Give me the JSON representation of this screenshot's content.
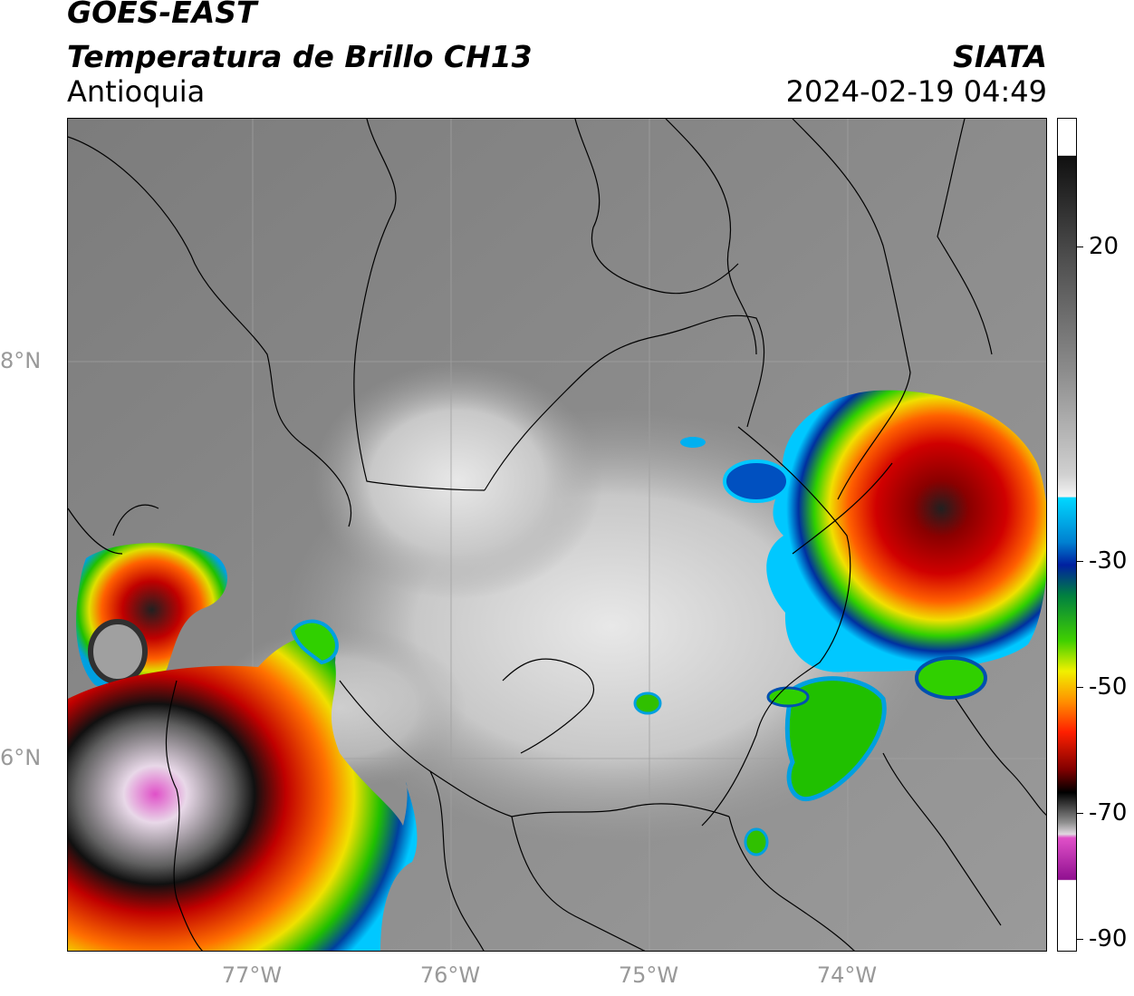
{
  "header": {
    "title": "GOES-EAST",
    "subtitle": "Temperatura de Brillo CH13",
    "region": "Antioquia",
    "organization": "SIATA",
    "datetime": "2024-02-19 04:49"
  },
  "map": {
    "lat_labels": [
      {
        "value": 8,
        "label": "8°N"
      },
      {
        "value": 6,
        "label": "6°N"
      }
    ],
    "lon_labels": [
      {
        "value": -77,
        "label": "77°W"
      },
      {
        "value": -76,
        "label": "76°W"
      },
      {
        "value": -75,
        "label": "75°W"
      },
      {
        "value": -74,
        "label": "74°W"
      }
    ],
    "extent": {
      "lon_min": -77.94,
      "lon_max": -73.0,
      "lat_min": 5.0,
      "lat_max": 9.2
    }
  },
  "colorbar": {
    "unit_label": "",
    "ticks": [
      {
        "value": 20,
        "label": "20"
      },
      {
        "value": -30,
        "label": "-30"
      },
      {
        "value": -50,
        "label": "-50"
      },
      {
        "value": -70,
        "label": "-70"
      },
      {
        "value": -90,
        "label": "-90"
      }
    ],
    "colors": {
      "warm": "#202020",
      "mid_gray": "#8a8a8a",
      "cold_white": "#f2f2f2",
      "cyan": "#00c8ff",
      "blue": "#002a9c",
      "green": "#00c000",
      "yellow": "#f0f000",
      "orange": "#ff8000",
      "red": "#d00000",
      "black": "#000000",
      "pale": "#e0d8e0",
      "magenta": "#e040c0",
      "purple": "#901090"
    }
  }
}
